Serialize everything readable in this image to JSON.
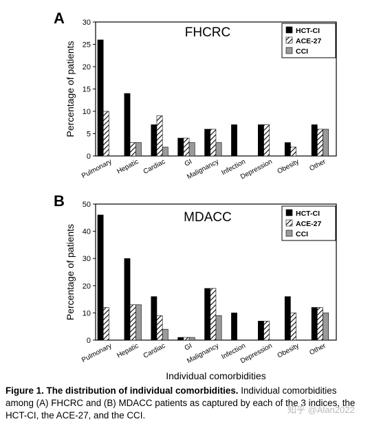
{
  "chart_data": [
    {
      "type": "bar",
      "panel_label": "A",
      "title": "FHCRC",
      "ylabel": "Percentage of patients",
      "xlabel": "",
      "ylim": [
        0,
        30
      ],
      "yticks": [
        0,
        5,
        10,
        15,
        20,
        25,
        30
      ],
      "categories": [
        "Pulmonary",
        "Hepatic",
        "Cardiac",
        "GI",
        "Malignancy",
        "Infection",
        "Depression",
        "Obesity",
        "Other"
      ],
      "series": [
        {
          "name": "HCT-CI",
          "values": [
            26,
            14,
            7,
            4,
            6,
            7,
            7,
            3,
            7
          ]
        },
        {
          "name": "ACE-27",
          "values": [
            10,
            3,
            9,
            4,
            6,
            null,
            7,
            2,
            6
          ]
        },
        {
          "name": "CCI",
          "values": [
            null,
            3,
            2,
            3,
            3,
            null,
            null,
            null,
            6
          ]
        }
      ],
      "legend_position": "top-right",
      "grid": false
    },
    {
      "type": "bar",
      "panel_label": "B",
      "title": "MDACC",
      "ylabel": "Percentage of patients",
      "xlabel": "Individual comorbidities",
      "ylim": [
        0,
        50
      ],
      "yticks": [
        0,
        10,
        20,
        30,
        40,
        50
      ],
      "categories": [
        "Pulmonary",
        "Hepatic",
        "Cardiac",
        "GI",
        "Malignancy",
        "Infection",
        "Depression",
        "Obesity",
        "Other"
      ],
      "series": [
        {
          "name": "HCT-CI",
          "values": [
            46,
            30,
            16,
            1,
            19,
            10,
            7,
            16,
            12
          ]
        },
        {
          "name": "ACE-27",
          "values": [
            12,
            13,
            9,
            1,
            19,
            null,
            7,
            10,
            12
          ]
        },
        {
          "name": "CCI",
          "values": [
            null,
            13,
            4,
            1,
            9,
            null,
            null,
            null,
            10
          ]
        }
      ],
      "legend_position": "top-right",
      "grid": false
    }
  ],
  "series_colors": {
    "HCT-CI": "#000000",
    "ACE-27": "hatched",
    "CCI": "#9a9a9a"
  },
  "caption": {
    "bold_text": "Figure 1. The distribution of individual comorbidities.",
    "line1_rest": " Individual comorbidities",
    "line2": "among (A) FHCRC and (B) MDACC patients as captured by each of the 3 indices, the",
    "line3": "HCT-CI, the ACE-27, and the CCI."
  },
  "watermark": "知乎 @Alan2022"
}
